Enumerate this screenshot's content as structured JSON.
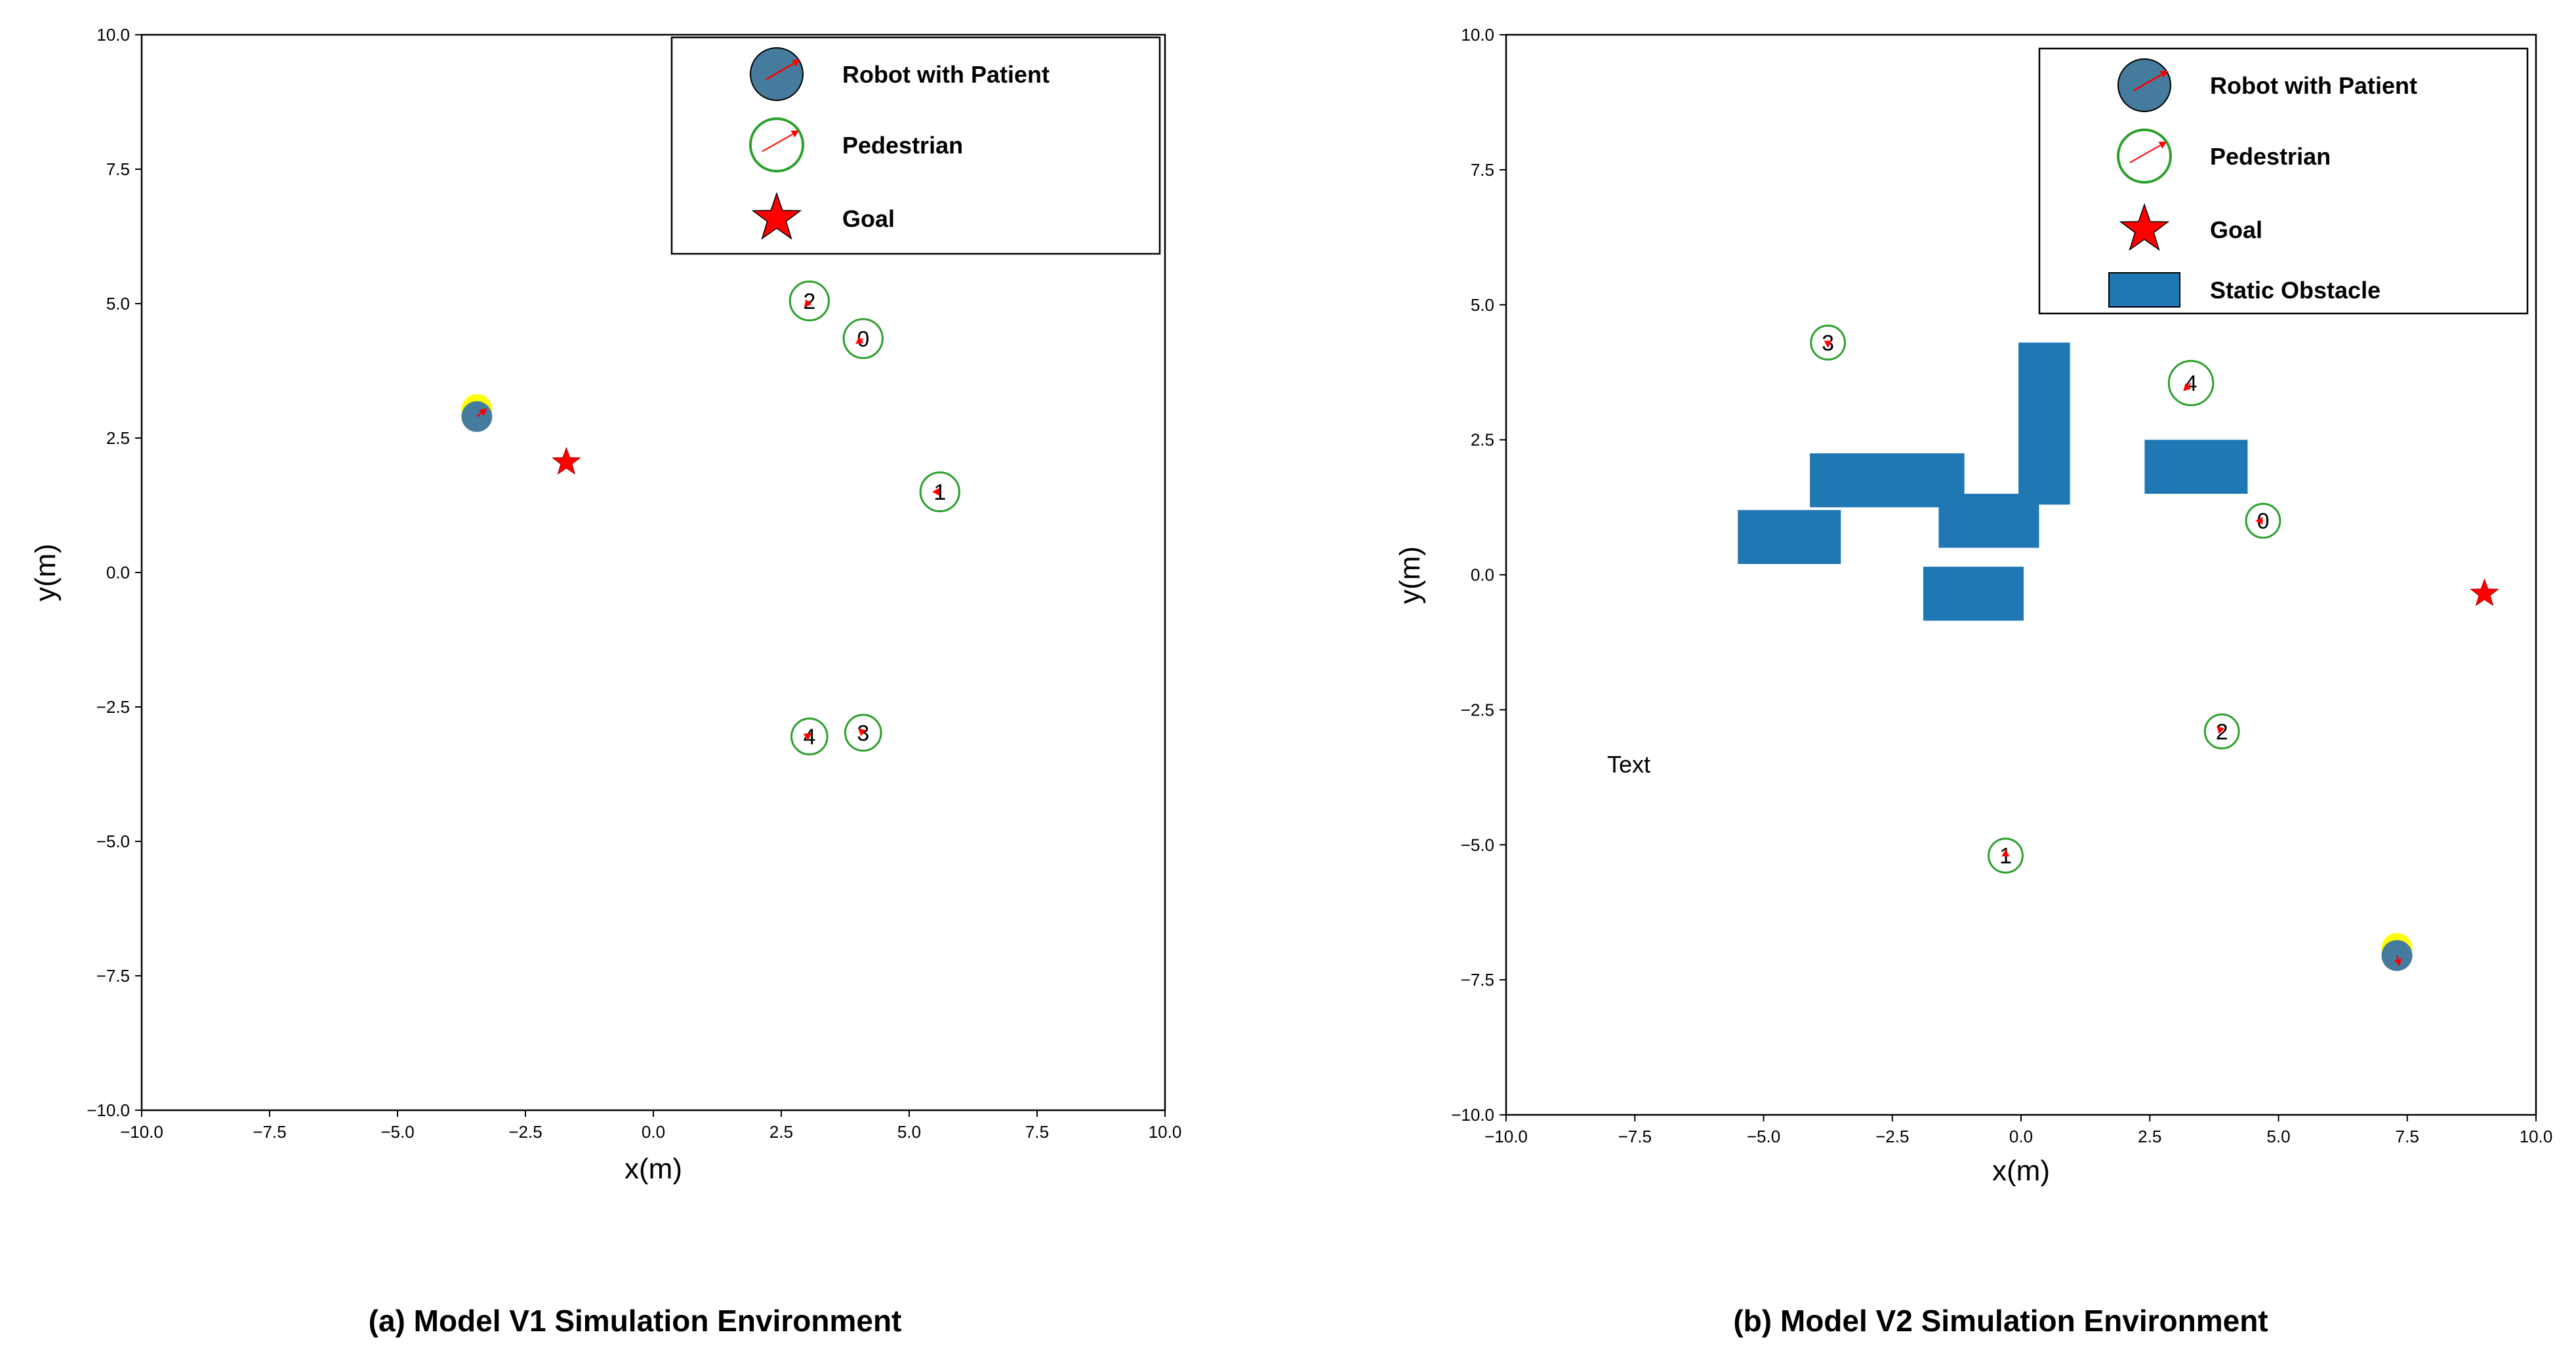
{
  "figure": {
    "captions": [
      "(a) Model V1 Simulation Environment",
      "(b) Model V2 Simulation Environment"
    ]
  },
  "colors": {
    "robot": "#457b9d",
    "robot_halo": "#ffff00",
    "pedestrian": "#2ca02c",
    "arrow": "#ff0000",
    "goal": "#ff0000",
    "obstacle": "#1f77b4"
  },
  "chart_data": [
    {
      "type": "scatter",
      "title": "",
      "xlabel": "x(m)",
      "ylabel": "y(m)",
      "xlim": [
        -10,
        10
      ],
      "ylim": [
        -10,
        10
      ],
      "xticks": [
        "−10.0",
        "−7.5",
        "−5.0",
        "−2.5",
        "0.0",
        "2.5",
        "5.0",
        "7.5",
        "10.0"
      ],
      "yticks": [
        "10.0",
        "7.5",
        "5.0",
        "2.5",
        "0.0",
        "−2.5",
        "−5.0",
        "−7.5",
        "−10.0"
      ],
      "legend": {
        "position": "top-right",
        "entries": [
          "Robot with Patient",
          "Pedestrian",
          "Goal"
        ]
      },
      "robot": {
        "x": -3.45,
        "y": 2.9,
        "radius": 0.3,
        "vx": 0.2,
        "vy": 0.15
      },
      "goal": {
        "x": -1.7,
        "y": 2.05
      },
      "pedestrians": [
        {
          "id": "0",
          "x": 4.1,
          "y": 4.35,
          "radius": 0.38,
          "vx": -0.15,
          "vy": -0.1
        },
        {
          "id": "1",
          "x": 5.6,
          "y": 1.5,
          "radius": 0.38,
          "vx": -0.15,
          "vy": 0.0
        },
        {
          "id": "2",
          "x": 3.05,
          "y": 5.05,
          "radius": 0.38,
          "vx": -0.1,
          "vy": -0.12
        },
        {
          "id": "3",
          "x": 4.1,
          "y": -2.98,
          "radius": 0.35,
          "vx": -0.1,
          "vy": 0.08
        },
        {
          "id": "4",
          "x": 3.05,
          "y": -3.05,
          "radius": 0.35,
          "vx": -0.12,
          "vy": 0.05
        }
      ],
      "obstacles": [],
      "annotations": []
    },
    {
      "type": "scatter",
      "title": "",
      "xlabel": "x(m)",
      "ylabel": "y(m)",
      "xlim": [
        -10,
        10
      ],
      "ylim": [
        -10,
        10
      ],
      "xticks": [
        "−10.0",
        "−7.5",
        "−5.0",
        "−2.5",
        "0.0",
        "2.5",
        "5.0",
        "7.5",
        "10.0"
      ],
      "yticks": [
        "10.0",
        "7.5",
        "5.0",
        "2.5",
        "0.0",
        "−2.5",
        "−5.0",
        "−7.5",
        "−10.0"
      ],
      "legend": {
        "position": "top-right",
        "entries": [
          "Robot with Patient",
          "Pedestrian",
          "Goal",
          "Static Obstacle"
        ]
      },
      "robot": {
        "x": 7.3,
        "y": -7.05,
        "radius": 0.3,
        "vx": 0.05,
        "vy": -0.2
      },
      "goal": {
        "x": 9.0,
        "y": -0.35
      },
      "pedestrians": [
        {
          "id": "0",
          "x": 4.7,
          "y": 1.0,
          "radius": 0.33,
          "vx": -0.15,
          "vy": 0.0
        },
        {
          "id": "1",
          "x": -0.3,
          "y": -5.2,
          "radius": 0.33,
          "vx": 0.0,
          "vy": 0.12
        },
        {
          "id": "2",
          "x": 3.9,
          "y": -2.9,
          "radius": 0.33,
          "vx": -0.1,
          "vy": 0.1
        },
        {
          "id": "3",
          "x": -3.75,
          "y": 4.3,
          "radius": 0.33,
          "vx": 0.0,
          "vy": -0.1
        },
        {
          "id": "4",
          "x": 3.3,
          "y": 3.55,
          "radius": 0.43,
          "vx": -0.15,
          "vy": -0.15
        }
      ],
      "obstacles": [
        {
          "x0": -5.5,
          "y0": 0.2,
          "x1": -3.5,
          "y1": 1.2
        },
        {
          "x0": -4.1,
          "y0": 1.25,
          "x1": -1.1,
          "y1": 2.25
        },
        {
          "x0": -1.6,
          "y0": 0.5,
          "x1": 0.35,
          "y1": 1.5
        },
        {
          "x0": -1.9,
          "y0": -0.85,
          "x1": 0.05,
          "y1": 0.15
        },
        {
          "x0": -0.05,
          "y0": 1.3,
          "x1": 0.95,
          "y1": 4.3
        },
        {
          "x0": 2.4,
          "y0": 1.5,
          "x1": 4.4,
          "y1": 2.5
        }
      ],
      "annotations": [
        "Text"
      ]
    }
  ]
}
